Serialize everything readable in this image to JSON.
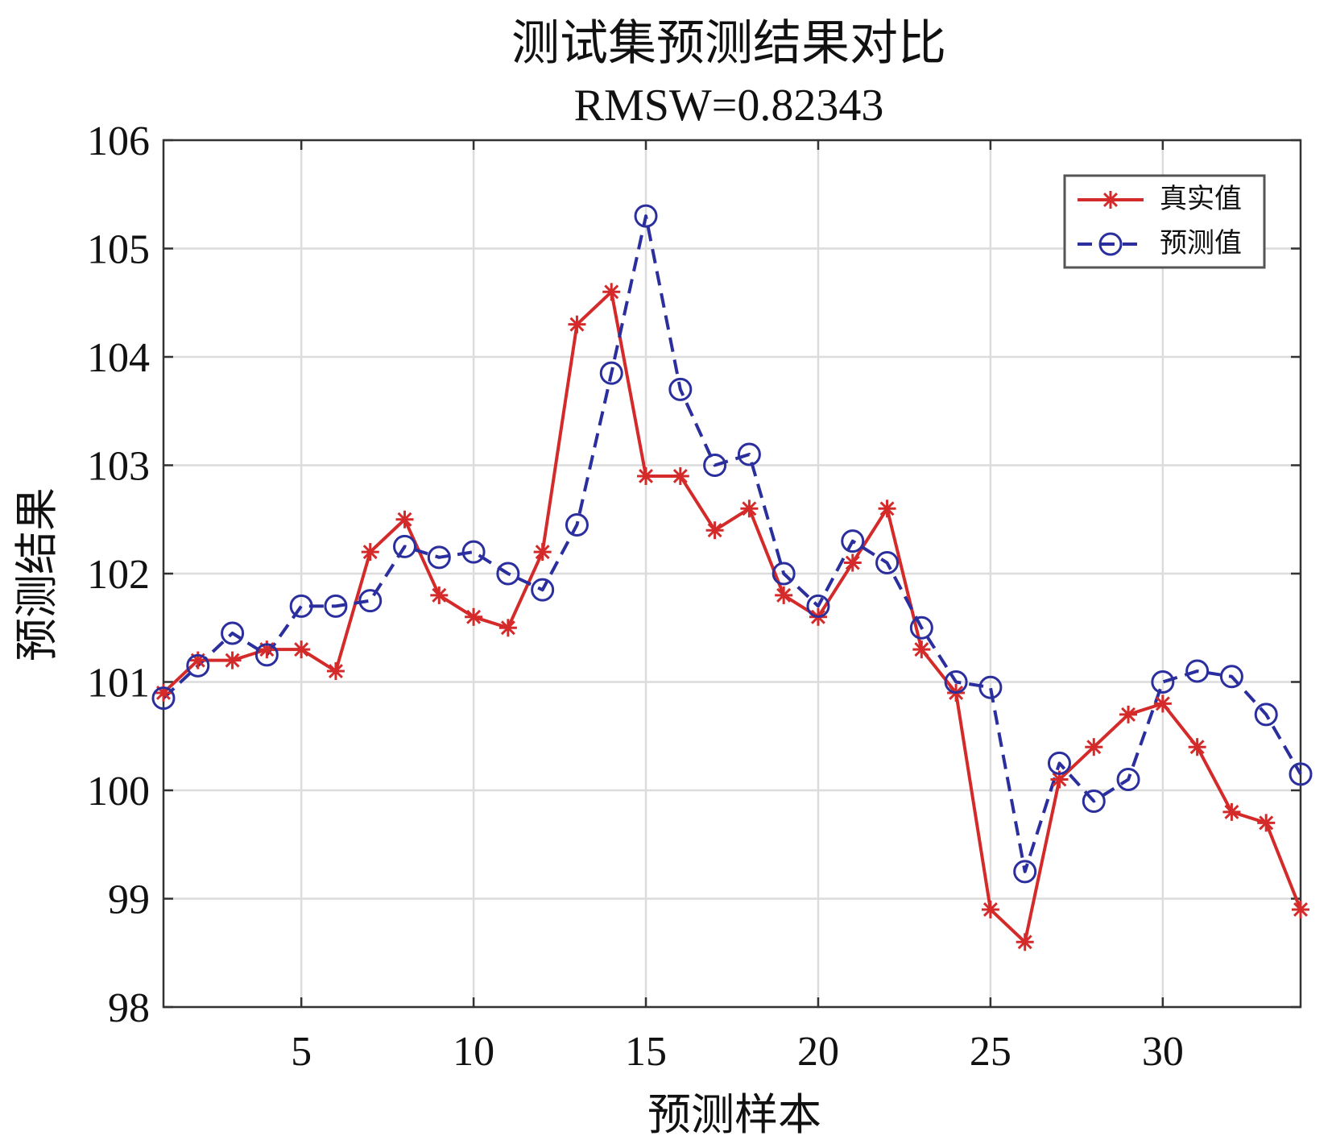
{
  "chart_data": {
    "type": "line",
    "title": "测试集预测结果对比",
    "subtitle": "RMSW=0.82343",
    "xlabel": "预测样本",
    "ylabel": "预测结果",
    "xlim": [
      1,
      34
    ],
    "ylim": [
      98,
      106
    ],
    "xticks": [
      5,
      10,
      15,
      20,
      25,
      30
    ],
    "yticks": [
      98,
      99,
      100,
      101,
      102,
      103,
      104,
      105,
      106
    ],
    "grid": true,
    "legend_position": "top-right",
    "x": [
      1,
      2,
      3,
      4,
      5,
      6,
      7,
      8,
      9,
      10,
      11,
      12,
      13,
      14,
      15,
      16,
      17,
      18,
      19,
      20,
      21,
      22,
      23,
      24,
      25,
      26,
      27,
      28,
      29,
      30,
      31,
      32,
      33,
      34
    ],
    "series": [
      {
        "name": "真实值",
        "color": "#d42a2a",
        "line_style": "solid",
        "marker": "asterisk",
        "values": [
          100.9,
          101.2,
          101.2,
          101.3,
          101.3,
          101.1,
          102.2,
          102.5,
          101.8,
          101.6,
          101.5,
          102.2,
          104.3,
          104.6,
          102.9,
          102.9,
          102.4,
          102.6,
          101.8,
          101.6,
          102.1,
          102.6,
          101.3,
          100.9,
          98.9,
          98.6,
          100.1,
          100.4,
          100.7,
          100.8,
          100.4,
          99.8,
          99.7,
          98.9
        ]
      },
      {
        "name": "预测值",
        "color": "#2b2f9e",
        "line_style": "dashed",
        "marker": "circle",
        "values": [
          100.85,
          101.15,
          101.45,
          101.25,
          101.7,
          101.7,
          101.75,
          102.25,
          102.15,
          102.2,
          102.0,
          101.85,
          102.45,
          103.85,
          105.3,
          103.7,
          103.0,
          103.1,
          102.0,
          101.7,
          102.3,
          102.1,
          101.5,
          101.0,
          100.95,
          99.25,
          100.25,
          99.9,
          100.1,
          101.0,
          101.1,
          101.05,
          100.7,
          100.15
        ]
      }
    ]
  }
}
